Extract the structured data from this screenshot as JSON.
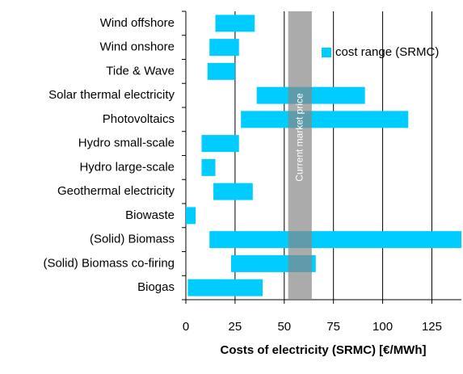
{
  "chart_data": {
    "type": "floating-bar",
    "xlabel": "Costs of electricity (SRMC) [€/MWh]",
    "categories": [
      "Wind offshore",
      "Wind onshore",
      "Tide & Wave",
      "Solar thermal electricity",
      "Photovoltaics",
      "Hydro small-scale",
      "Hydro large-scale",
      "Geothermal electricity",
      "Biowaste",
      "(Solid) Biomass",
      "(Solid) Biomass co-firing",
      "Biogas"
    ],
    "series": [
      {
        "name": "cost range (SRMC)",
        "color": "#00ccff",
        "low": [
          15,
          12,
          11,
          36,
          28,
          8,
          8,
          14,
          0,
          12,
          23,
          1
        ],
        "high": [
          35,
          27,
          25,
          91,
          113,
          27,
          15,
          34,
          5,
          140,
          66,
          39
        ]
      }
    ],
    "market_band": {
      "label": "Current market price",
      "range": [
        52,
        64
      ],
      "color": "#888888"
    },
    "xlim": [
      0,
      140
    ],
    "xticks": [
      0,
      25,
      50,
      75,
      100,
      125
    ],
    "grid": true
  }
}
